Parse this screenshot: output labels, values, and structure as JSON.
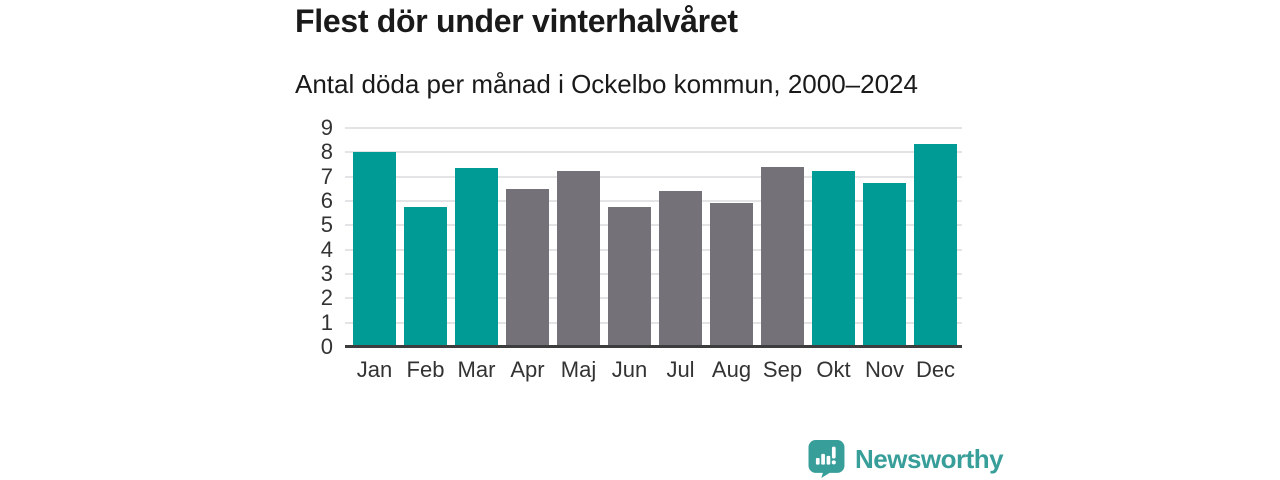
{
  "header": {
    "title": "Flest dör under vinterhalvåret",
    "subtitle": "Antal döda per månad i Ockelbo kommun, 2000–2024"
  },
  "chart_data": {
    "type": "bar",
    "title": "Flest dör under vinterhalvåret",
    "subtitle": "Antal döda per månad i Ockelbo kommun, 2000–2024",
    "categories": [
      "Jan",
      "Feb",
      "Mar",
      "Apr",
      "Maj",
      "Jun",
      "Jul",
      "Aug",
      "Sep",
      "Okt",
      "Nov",
      "Dec"
    ],
    "values": [
      8.0,
      5.75,
      7.35,
      6.5,
      7.25,
      5.75,
      6.4,
      5.9,
      7.4,
      7.25,
      6.75,
      8.35
    ],
    "bar_color_keys": [
      "teal",
      "teal",
      "teal",
      "gray",
      "gray",
      "gray",
      "gray",
      "gray",
      "gray",
      "teal",
      "teal",
      "teal"
    ],
    "xlabel": "",
    "ylabel": "",
    "ylim": [
      0,
      9
    ],
    "yticks": [
      0,
      1,
      2,
      3,
      4,
      5,
      6,
      7,
      8,
      9
    ],
    "grid": "horizontal",
    "legend": "none"
  },
  "colors": {
    "teal": "#009b94",
    "gray": "#757179",
    "gridline": "#e4e4e6",
    "axis_line": "#3d3d3d",
    "title_text": "#1a1a1a",
    "tick_label": "#333333",
    "brand_teal": "#379e99"
  },
  "footer": {
    "brand": "Newsworthy"
  }
}
